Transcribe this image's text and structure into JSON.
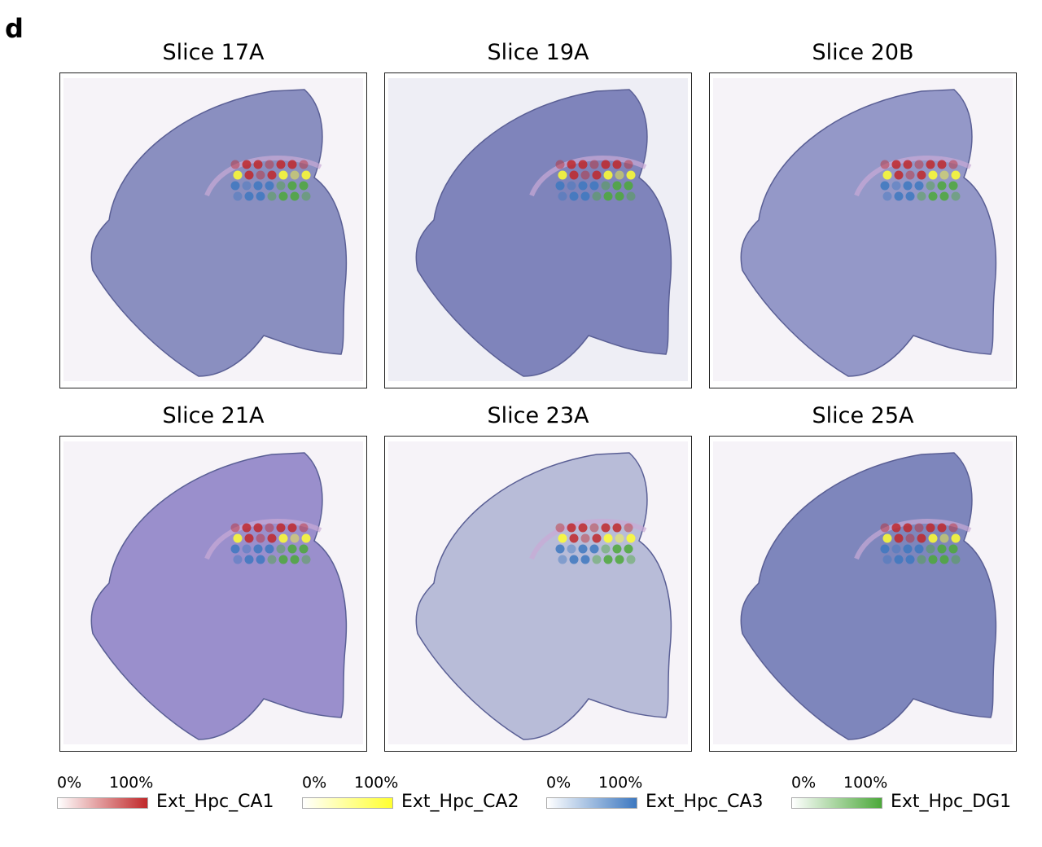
{
  "panel_letter": "d",
  "slices": [
    {
      "title": "Slice 17A",
      "tint": "#8a8fc0"
    },
    {
      "title": "Slice 19A",
      "tint": "#7f84bb"
    },
    {
      "title": "Slice 20B",
      "tint": "#9498c8"
    },
    {
      "title": "Slice 21A",
      "tint": "#9a8fcc"
    },
    {
      "title": "Slice 23A",
      "tint": "#b8bcd8"
    },
    {
      "title": "Slice 25A",
      "tint": "#7e86bc"
    }
  ],
  "legend": [
    {
      "min": "0%",
      "max": "100%",
      "name": "Ext_Hpc_CA1",
      "color": "#c0282a"
    },
    {
      "min": "0%",
      "max": "100%",
      "name": "Ext_Hpc_CA2",
      "color": "#ffff30"
    },
    {
      "min": "0%",
      "max": "100%",
      "name": "Ext_Hpc_CA3",
      "color": "#3d78c0"
    },
    {
      "min": "0%",
      "max": "100%",
      "name": "Ext_Hpc_DG1",
      "color": "#4ca83a"
    }
  ]
}
